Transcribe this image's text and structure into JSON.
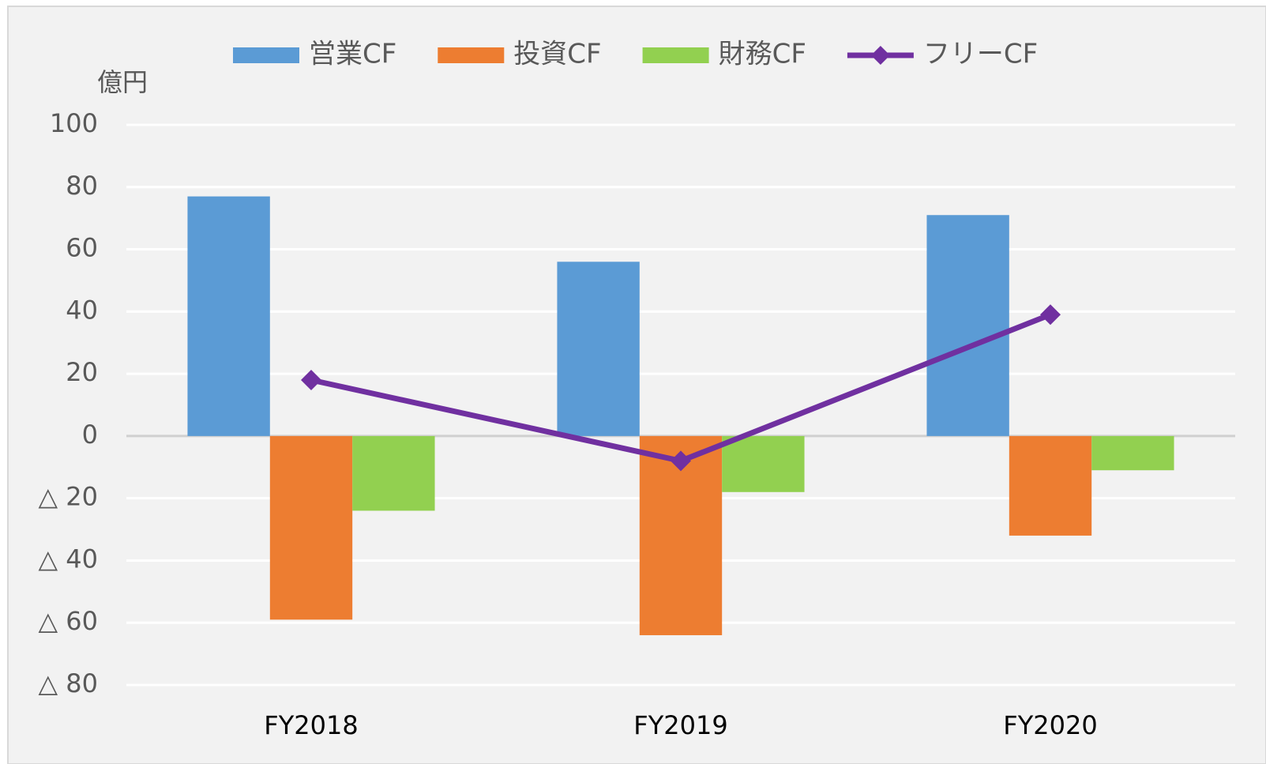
{
  "chart_data": {
    "type": "bar",
    "y_axis_label": "億円",
    "categories": [
      "FY2018",
      "FY2019",
      "FY2020"
    ],
    "series": [
      {
        "name": "営業CF",
        "color": "#5b9bd5",
        "values": [
          77,
          56,
          71
        ]
      },
      {
        "name": "投資CF",
        "color": "#ed7d31",
        "values": [
          -59,
          -64,
          -32
        ]
      },
      {
        "name": "財務CF",
        "color": "#92d050",
        "values": [
          -24,
          -18,
          -11
        ]
      },
      {
        "name": "フリーCF",
        "color": "#7030a0",
        "type": "line",
        "values": [
          18,
          -8,
          39
        ]
      }
    ],
    "ylim": [
      -80,
      100
    ],
    "yticks": [
      {
        "value": -80,
        "label": "△ 80"
      },
      {
        "value": -60,
        "label": "△ 60"
      },
      {
        "value": -40,
        "label": "△ 40"
      },
      {
        "value": -20,
        "label": "△ 20"
      },
      0,
      20,
      40,
      60,
      80,
      100
    ],
    "grid": true,
    "legend": "top"
  }
}
